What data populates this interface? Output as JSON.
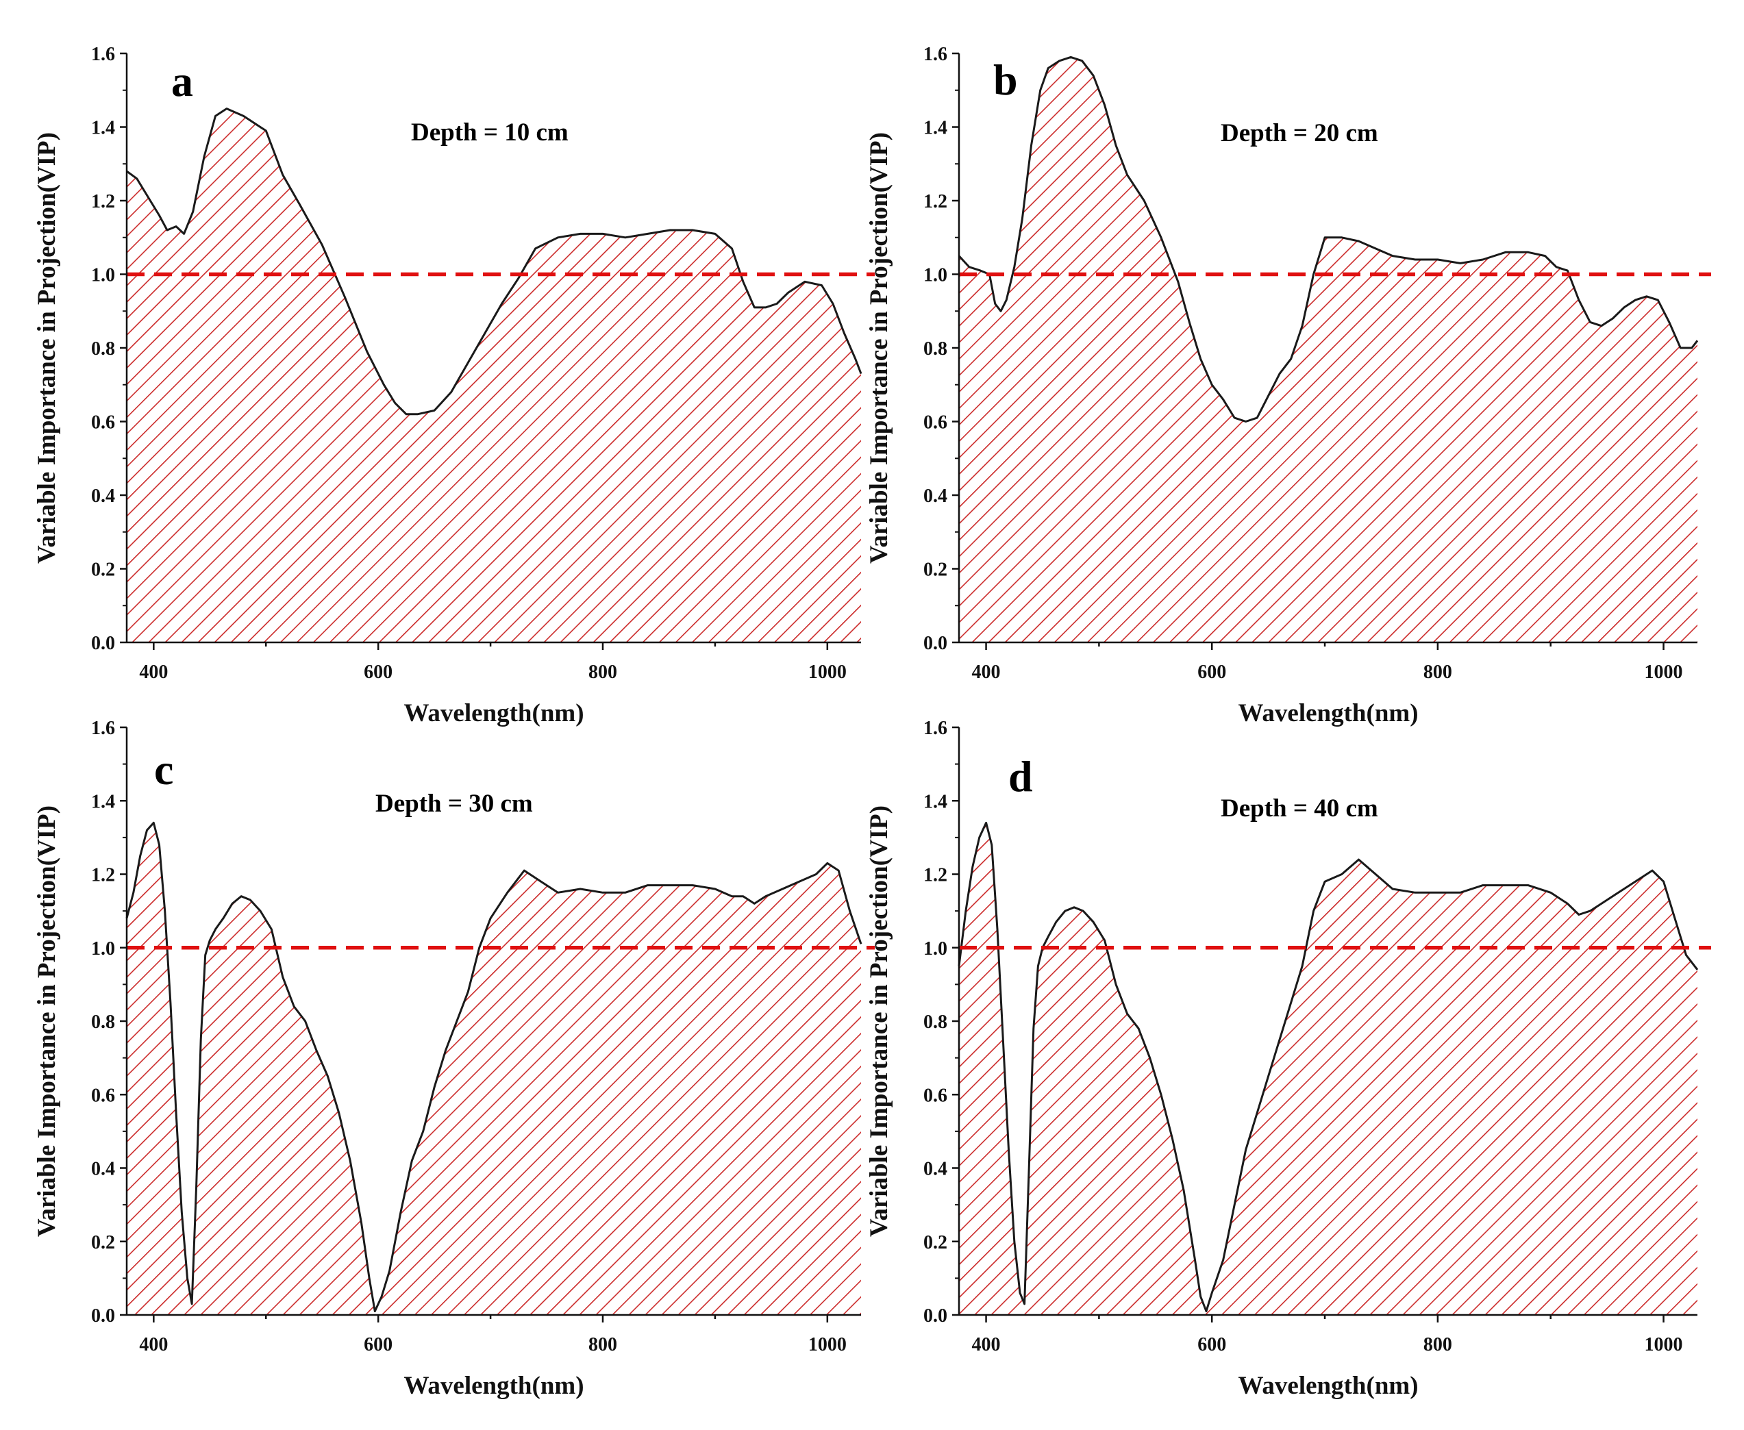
{
  "figure": {
    "background": "#ffffff",
    "fill_color": "#cc2a2a",
    "line_color": "#1a1a1a",
    "threshold_color": "#e01010"
  },
  "chart_data": [
    {
      "type": "area",
      "panel": "a",
      "depth_label": "Depth = 10 cm",
      "xlabel": "Wavelength(nm)",
      "ylabel": "Variable Importance in Projection(VIP)",
      "xlim": [
        376,
        1030
      ],
      "ylim": [
        0,
        1.6
      ],
      "xticks": [
        400,
        600,
        800,
        1000
      ],
      "yticks": [
        "0.0",
        "0.2",
        "0.4",
        "0.6",
        "0.8",
        "1.0",
        "1.2",
        "1.4",
        "1.6"
      ],
      "threshold": 1.0,
      "x": [
        376,
        385,
        395,
        405,
        412,
        420,
        427,
        435,
        445,
        455,
        465,
        480,
        500,
        515,
        530,
        550,
        570,
        590,
        605,
        615,
        625,
        635,
        650,
        665,
        680,
        695,
        710,
        725,
        740,
        760,
        780,
        800,
        820,
        840,
        860,
        880,
        900,
        915,
        925,
        935,
        945,
        955,
        965,
        980,
        995,
        1005,
        1015,
        1025,
        1030
      ],
      "y": [
        1.28,
        1.26,
        1.21,
        1.16,
        1.12,
        1.13,
        1.11,
        1.17,
        1.32,
        1.43,
        1.45,
        1.43,
        1.39,
        1.27,
        1.19,
        1.08,
        0.94,
        0.79,
        0.7,
        0.65,
        0.62,
        0.62,
        0.63,
        0.68,
        0.76,
        0.84,
        0.92,
        0.99,
        1.07,
        1.1,
        1.11,
        1.11,
        1.1,
        1.11,
        1.12,
        1.12,
        1.11,
        1.07,
        0.98,
        0.91,
        0.91,
        0.92,
        0.95,
        0.98,
        0.97,
        0.92,
        0.84,
        0.77,
        0.73
      ]
    },
    {
      "type": "area",
      "panel": "b",
      "depth_label": "Depth = 20 cm",
      "xlabel": "Wavelength(nm)",
      "ylabel": "Variable Importance in Projection(VIP)",
      "xlim": [
        376,
        1030
      ],
      "ylim": [
        0,
        1.6
      ],
      "xticks": [
        400,
        600,
        800,
        1000
      ],
      "yticks": [
        "0.0",
        "0.2",
        "0.4",
        "0.6",
        "0.8",
        "1.0",
        "1.2",
        "1.4",
        "1.6"
      ],
      "threshold": 1.0,
      "x": [
        376,
        385,
        395,
        403,
        408,
        413,
        418,
        425,
        432,
        440,
        448,
        455,
        465,
        475,
        485,
        495,
        505,
        515,
        525,
        540,
        555,
        570,
        580,
        590,
        600,
        610,
        620,
        630,
        640,
        650,
        660,
        670,
        680,
        690,
        700,
        715,
        730,
        745,
        760,
        780,
        800,
        820,
        840,
        860,
        880,
        895,
        905,
        915,
        925,
        935,
        945,
        955,
        965,
        975,
        985,
        995,
        1005,
        1015,
        1025,
        1030
      ],
      "y": [
        1.05,
        1.02,
        1.01,
        1.0,
        0.92,
        0.9,
        0.93,
        1.02,
        1.15,
        1.35,
        1.5,
        1.56,
        1.58,
        1.59,
        1.58,
        1.54,
        1.46,
        1.35,
        1.27,
        1.2,
        1.1,
        0.98,
        0.87,
        0.77,
        0.7,
        0.66,
        0.61,
        0.6,
        0.61,
        0.67,
        0.73,
        0.77,
        0.86,
        1.0,
        1.1,
        1.1,
        1.09,
        1.07,
        1.05,
        1.04,
        1.04,
        1.03,
        1.04,
        1.06,
        1.06,
        1.05,
        1.02,
        1.01,
        0.93,
        0.87,
        0.86,
        0.88,
        0.91,
        0.93,
        0.94,
        0.93,
        0.87,
        0.8,
        0.8,
        0.82
      ]
    },
    {
      "type": "area",
      "panel": "c",
      "depth_label": "Depth = 30 cm",
      "xlabel": "Wavelength(nm)",
      "ylabel": "Variable Importance in Projection(VIP)",
      "xlim": [
        376,
        1030
      ],
      "ylim": [
        0,
        1.6
      ],
      "xticks": [
        400,
        600,
        800,
        1000
      ],
      "yticks": [
        "0.0",
        "0.2",
        "0.4",
        "0.6",
        "0.8",
        "1.0",
        "1.2",
        "1.4",
        "1.6"
      ],
      "threshold": 1.0,
      "x": [
        376,
        382,
        388,
        394,
        400,
        405,
        410,
        415,
        420,
        425,
        430,
        434,
        438,
        442,
        446,
        450,
        455,
        462,
        470,
        478,
        486,
        495,
        505,
        515,
        525,
        535,
        545,
        555,
        565,
        575,
        585,
        592,
        597,
        603,
        610,
        620,
        630,
        640,
        650,
        660,
        670,
        680,
        690,
        700,
        715,
        730,
        745,
        760,
        780,
        800,
        820,
        840,
        860,
        880,
        900,
        915,
        925,
        935,
        945,
        960,
        975,
        990,
        1000,
        1010,
        1020,
        1030
      ],
      "y": [
        1.08,
        1.15,
        1.25,
        1.32,
        1.34,
        1.28,
        1.1,
        0.85,
        0.55,
        0.28,
        0.1,
        0.03,
        0.35,
        0.75,
        0.98,
        1.02,
        1.05,
        1.08,
        1.12,
        1.14,
        1.13,
        1.1,
        1.05,
        0.92,
        0.84,
        0.8,
        0.72,
        0.65,
        0.55,
        0.42,
        0.25,
        0.1,
        0.01,
        0.05,
        0.12,
        0.28,
        0.42,
        0.5,
        0.62,
        0.72,
        0.8,
        0.88,
        1.0,
        1.08,
        1.15,
        1.21,
        1.18,
        1.15,
        1.16,
        1.15,
        1.15,
        1.17,
        1.17,
        1.17,
        1.16,
        1.14,
        1.14,
        1.12,
        1.14,
        1.16,
        1.18,
        1.2,
        1.23,
        1.21,
        1.1,
        1.01
      ]
    },
    {
      "type": "area",
      "panel": "d",
      "depth_label": "Depth = 40 cm",
      "xlabel": "Wavelength(nm)",
      "ylabel": "Variable Importance in Projection(VIP)",
      "xlim": [
        376,
        1030
      ],
      "ylim": [
        0,
        1.6
      ],
      "xticks": [
        400,
        600,
        800,
        1000
      ],
      "yticks": [
        "0.0",
        "0.2",
        "0.4",
        "0.6",
        "0.8",
        "1.0",
        "1.2",
        "1.4",
        "1.6"
      ],
      "threshold": 1.0,
      "x": [
        376,
        382,
        388,
        394,
        400,
        405,
        410,
        415,
        420,
        425,
        430,
        434,
        438,
        442,
        446,
        450,
        455,
        462,
        470,
        478,
        486,
        495,
        505,
        515,
        525,
        535,
        545,
        555,
        565,
        575,
        585,
        590,
        595,
        600,
        610,
        620,
        630,
        640,
        650,
        660,
        670,
        680,
        690,
        700,
        715,
        730,
        745,
        760,
        780,
        800,
        820,
        840,
        860,
        880,
        900,
        915,
        925,
        935,
        945,
        960,
        975,
        990,
        1000,
        1010,
        1020,
        1030
      ],
      "y": [
        0.95,
        1.1,
        1.22,
        1.3,
        1.34,
        1.28,
        1.05,
        0.75,
        0.45,
        0.2,
        0.06,
        0.03,
        0.4,
        0.78,
        0.95,
        1.0,
        1.03,
        1.07,
        1.1,
        1.11,
        1.1,
        1.07,
        1.02,
        0.9,
        0.82,
        0.78,
        0.7,
        0.6,
        0.48,
        0.34,
        0.15,
        0.05,
        0.01,
        0.06,
        0.15,
        0.3,
        0.45,
        0.55,
        0.65,
        0.75,
        0.85,
        0.95,
        1.1,
        1.18,
        1.2,
        1.24,
        1.2,
        1.16,
        1.15,
        1.15,
        1.15,
        1.17,
        1.17,
        1.17,
        1.15,
        1.12,
        1.09,
        1.1,
        1.12,
        1.15,
        1.18,
        1.21,
        1.18,
        1.08,
        0.98,
        0.94
      ]
    }
  ]
}
